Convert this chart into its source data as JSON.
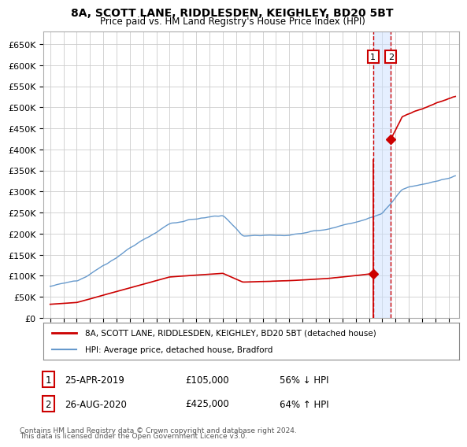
{
  "title": "8A, SCOTT LANE, RIDDLESDEN, KEIGHLEY, BD20 5BT",
  "subtitle": "Price paid vs. HM Land Registry's House Price Index (HPI)",
  "ylim": [
    0,
    680000
  ],
  "ytick_vals": [
    0,
    50000,
    100000,
    150000,
    200000,
    250000,
    300000,
    350000,
    400000,
    450000,
    500000,
    550000,
    600000,
    650000
  ],
  "ytick_labels": [
    "£0",
    "£50K",
    "£100K",
    "£150K",
    "£200K",
    "£250K",
    "£300K",
    "£350K",
    "£400K",
    "£450K",
    "£500K",
    "£550K",
    "£600K",
    "£650K"
  ],
  "xlim": [
    1994.5,
    2025.8
  ],
  "xtick_vals": [
    1995,
    1996,
    1997,
    1998,
    1999,
    2000,
    2001,
    2002,
    2003,
    2004,
    2005,
    2006,
    2007,
    2008,
    2009,
    2010,
    2011,
    2012,
    2013,
    2014,
    2015,
    2016,
    2017,
    2018,
    2019,
    2020,
    2021,
    2022,
    2023,
    2024,
    2025
  ],
  "t1_x": 2019.31,
  "t2_x": 2020.65,
  "p1": 105000,
  "p2": 425000,
  "line_color_price": "#cc0000",
  "line_color_hpi": "#6699cc",
  "shade_color": "#cce0ff",
  "dashed_color": "#cc0000",
  "grid_color": "#cccccc",
  "bg_color": "#ffffff",
  "legend_line1": "8A, SCOTT LANE, RIDDLESDEN, KEIGHLEY, BD20 5BT (detached house)",
  "legend_line2": "HPI: Average price, detached house, Bradford",
  "tr1_date": "25-APR-2019",
  "tr1_price": "£105,000",
  "tr1_hpi": "56% ↓ HPI",
  "tr2_date": "26-AUG-2020",
  "tr2_price": "£425,000",
  "tr2_hpi": "64% ↑ HPI",
  "footnote1": "Contains HM Land Registry data © Crown copyright and database right 2024.",
  "footnote2": "This data is licensed under the Open Government Licence v3.0."
}
